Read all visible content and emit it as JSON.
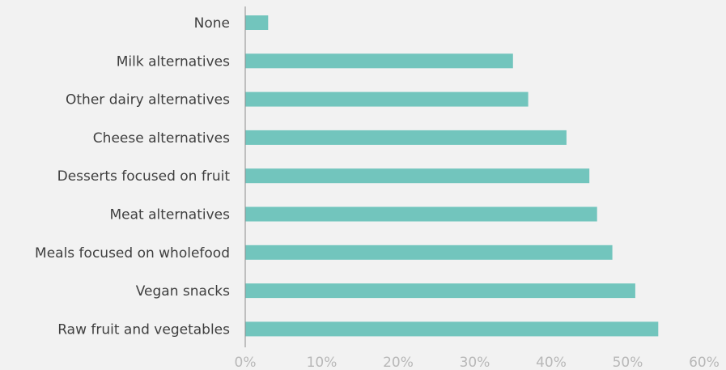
{
  "chart_data": {
    "type": "bar",
    "orientation": "horizontal",
    "categories": [
      "None",
      "Milk alternatives",
      "Other dairy alternatives",
      "Cheese alternatives",
      "Desserts focused on fruit",
      "Meat alternatives",
      "Meals focused on wholefood",
      "Vegan snacks",
      "Raw fruit and vegetables"
    ],
    "values": [
      3,
      35,
      37,
      42,
      45,
      46,
      48,
      51,
      54
    ],
    "value_unit": "%",
    "xlim": [
      0,
      60
    ],
    "x_ticks": [
      0,
      10,
      20,
      30,
      40,
      50,
      60
    ],
    "x_tick_labels": [
      "0%",
      "10%",
      "20%",
      "30%",
      "40%",
      "50%",
      "60%"
    ],
    "title": "",
    "xlabel": "",
    "ylabel": "",
    "grid": false,
    "legend": "none",
    "colors": {
      "bar": "#72c5bd",
      "axis": "#8c8c8c",
      "category_text": "#3f3f3f",
      "tick_text": "#b8b8b8",
      "background": "#f2f2f2"
    }
  }
}
